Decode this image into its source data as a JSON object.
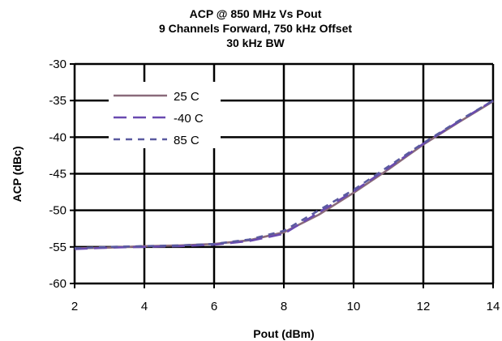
{
  "chart_data": {
    "type": "line",
    "title_lines": [
      "ACP @ 850 MHz Vs Pout",
      "9 Channels Forward, 750 kHz Offset",
      "30 kHz BW"
    ],
    "xlabel": "Pout (dBm)",
    "ylabel": "ACP (dBc)",
    "xlim": [
      2,
      14
    ],
    "ylim": [
      -60,
      -30
    ],
    "xticks": [
      2,
      4,
      6,
      8,
      10,
      12,
      14
    ],
    "yticks": [
      -30,
      -35,
      -40,
      -45,
      -50,
      -55,
      -60
    ],
    "grid": true,
    "legend_position": "top-left",
    "series": [
      {
        "name": "25 C",
        "color": "#8a6a7a",
        "dash": "solid",
        "x": [
          2,
          3,
          4,
          5,
          6,
          7,
          8,
          9,
          10,
          11,
          12,
          13,
          14
        ],
        "y": [
          -55.2,
          -55.1,
          -54.9,
          -54.8,
          -54.6,
          -54.1,
          -53.0,
          -50.6,
          -47.6,
          -44.4,
          -41.0,
          -38.0,
          -35.1
        ]
      },
      {
        "name": "-40 C",
        "color": "#6a4ab0",
        "dash": "long",
        "x": [
          2,
          3,
          4,
          5,
          6,
          7,
          8,
          9,
          10,
          11,
          12,
          13,
          14
        ],
        "y": [
          -55.3,
          -55.1,
          -55.0,
          -54.9,
          -54.7,
          -54.2,
          -53.2,
          -50.3,
          -47.4,
          -44.2,
          -40.9,
          -37.9,
          -35.0
        ]
      },
      {
        "name": "85 C",
        "color": "#5a5aa0",
        "dash": "short",
        "x": [
          2,
          3,
          4,
          5,
          6,
          7,
          8,
          9,
          10,
          11,
          12,
          13,
          14
        ],
        "y": [
          -55.2,
          -55.0,
          -54.9,
          -54.8,
          -54.6,
          -54.0,
          -52.8,
          -50.0,
          -47.2,
          -44.0,
          -40.8,
          -37.8,
          -35.0
        ]
      }
    ]
  }
}
